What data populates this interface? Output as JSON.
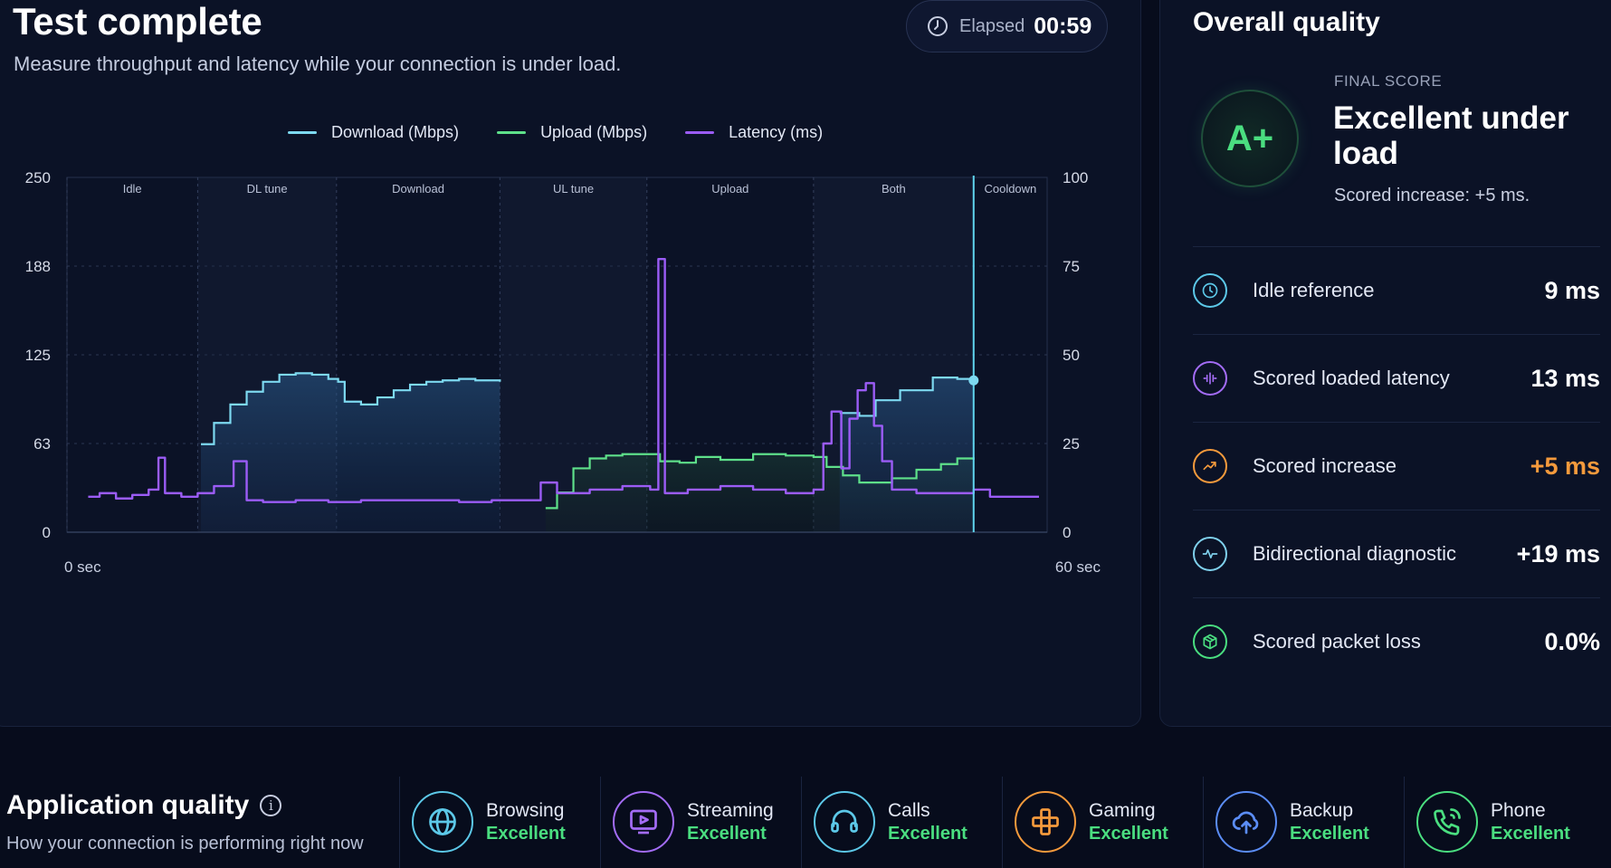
{
  "header": {
    "title": "Test complete",
    "subtitle": "Measure throughput and latency while your connection is under load.",
    "elapsed_label": "Elapsed",
    "elapsed_value": "00:59"
  },
  "legend": [
    {
      "label": "Download (Mbps)",
      "color": "#7dd9f0"
    },
    {
      "label": "Upload (Mbps)",
      "color": "#5ee08a"
    },
    {
      "label": "Latency (ms)",
      "color": "#9b5cf6"
    }
  ],
  "chart_data": {
    "type": "line",
    "x_range": [
      0,
      60
    ],
    "x_labels": [
      "0 sec",
      "60 sec"
    ],
    "y_left_ticks": [
      "250",
      "188",
      "125",
      "63",
      "0"
    ],
    "y_right_ticks": [
      "100",
      "75",
      "50",
      "25",
      "0"
    ],
    "y_left_range": [
      0,
      250
    ],
    "y_right_range": [
      0,
      100
    ],
    "phases": [
      {
        "name": "Idle",
        "start": 0,
        "end": 8
      },
      {
        "name": "DL tune",
        "start": 8,
        "end": 16.5
      },
      {
        "name": "Download",
        "start": 16.5,
        "end": 26.5
      },
      {
        "name": "UL tune",
        "start": 26.5,
        "end": 35.5
      },
      {
        "name": "Upload",
        "start": 35.5,
        "end": 45.7
      },
      {
        "name": "Both",
        "start": 45.7,
        "end": 55.5
      },
      {
        "name": "Cooldown",
        "start": 55.5,
        "end": 60
      }
    ],
    "marker_x": 55.5,
    "series": [
      {
        "name": "Download (Mbps)",
        "axis": "left",
        "points": [
          [
            8.2,
            62
          ],
          [
            9,
            77
          ],
          [
            10,
            90
          ],
          [
            11,
            99
          ],
          [
            12,
            106
          ],
          [
            13,
            111
          ],
          [
            14,
            112
          ],
          [
            15,
            111
          ],
          [
            16,
            108
          ],
          [
            16.6,
            106
          ],
          [
            17,
            92
          ],
          [
            18,
            90
          ],
          [
            19,
            95
          ],
          [
            20,
            100
          ],
          [
            21,
            104
          ],
          [
            22,
            106
          ],
          [
            23,
            107
          ],
          [
            24,
            108
          ],
          [
            25,
            107
          ],
          [
            26.5,
            106
          ],
          [
            47.3,
            84
          ],
          [
            48.5,
            82
          ],
          [
            49.5,
            93
          ],
          [
            51,
            100
          ],
          [
            53,
            109
          ],
          [
            54.5,
            108
          ],
          [
            55.5,
            107
          ]
        ]
      },
      {
        "name": "Upload (Mbps)",
        "axis": "left",
        "points": [
          [
            29.3,
            17
          ],
          [
            30,
            28
          ],
          [
            31,
            45
          ],
          [
            32,
            52
          ],
          [
            33,
            54
          ],
          [
            34,
            55
          ],
          [
            35,
            55
          ],
          [
            36,
            55
          ],
          [
            36.3,
            50
          ],
          [
            37.5,
            49
          ],
          [
            38.5,
            53
          ],
          [
            40,
            51
          ],
          [
            42,
            55
          ],
          [
            44,
            54
          ],
          [
            45.7,
            53
          ],
          [
            46.5,
            46
          ],
          [
            47.5,
            40
          ],
          [
            48.5,
            35
          ],
          [
            49.5,
            35
          ],
          [
            50.5,
            38
          ],
          [
            52,
            44
          ],
          [
            53.5,
            48
          ],
          [
            54.5,
            52
          ],
          [
            55.5,
            51
          ]
        ]
      },
      {
        "name": "Latency (ms)",
        "axis": "right",
        "points": [
          [
            1.3,
            10
          ],
          [
            2,
            11
          ],
          [
            3,
            9.5
          ],
          [
            4,
            10.5
          ],
          [
            5,
            12
          ],
          [
            5.6,
            21
          ],
          [
            6,
            11
          ],
          [
            7,
            10
          ],
          [
            8,
            11
          ],
          [
            9,
            13
          ],
          [
            10.2,
            20
          ],
          [
            11,
            9
          ],
          [
            12,
            8.5
          ],
          [
            14,
            9
          ],
          [
            16,
            8.5
          ],
          [
            18,
            9
          ],
          [
            20,
            9
          ],
          [
            22,
            9
          ],
          [
            24,
            8.5
          ],
          [
            26,
            9
          ],
          [
            28,
            9
          ],
          [
            29,
            14
          ],
          [
            30,
            11
          ],
          [
            32,
            12
          ],
          [
            34,
            13
          ],
          [
            35.7,
            12
          ],
          [
            36.2,
            77
          ],
          [
            36.6,
            11
          ],
          [
            38,
            12
          ],
          [
            40,
            13
          ],
          [
            42,
            12
          ],
          [
            44,
            11
          ],
          [
            45.7,
            12
          ],
          [
            46.3,
            25
          ],
          [
            46.8,
            34
          ],
          [
            47.4,
            18
          ],
          [
            47.9,
            32
          ],
          [
            48.4,
            40
          ],
          [
            48.9,
            42
          ],
          [
            49.4,
            30
          ],
          [
            49.9,
            20
          ],
          [
            50.5,
            12
          ],
          [
            52,
            11
          ],
          [
            54,
            11
          ],
          [
            55.5,
            12
          ],
          [
            56.5,
            10
          ],
          [
            58,
            10
          ],
          [
            59.5,
            10
          ]
        ]
      }
    ]
  },
  "quality": {
    "title": "Overall quality",
    "grade": "A+",
    "grade_color": "#4ade80",
    "final_label": "FINAL SCORE",
    "final_headline": "Excellent under load",
    "final_sub": "Scored increase: +5 ms.",
    "metrics": [
      {
        "label": "Idle reference",
        "value": "9 ms",
        "icon": "clock-icon",
        "color": "#5cc8e8"
      },
      {
        "label": "Scored loaded latency",
        "value": "13 ms",
        "icon": "waveform-icon",
        "color": "#a36cf6"
      },
      {
        "label": "Scored increase",
        "value": "+5 ms",
        "icon": "trending-up-icon",
        "color": "#f59a3c",
        "value_color": "#f59a3c"
      },
      {
        "label": "Bidirectional diagnostic",
        "value": "+19 ms",
        "icon": "pulse-icon",
        "color": "#7fd0ec"
      },
      {
        "label": "Scored packet loss",
        "value": "0.0%",
        "icon": "package-icon",
        "color": "#4ade80"
      }
    ]
  },
  "apps": {
    "title": "Application quality",
    "subtitle": "How your connection is performing right now",
    "items": [
      {
        "name": "Browsing",
        "status": "Excellent",
        "icon": "globe-icon",
        "color": "#5cc8e8"
      },
      {
        "name": "Streaming",
        "status": "Excellent",
        "icon": "play-screen-icon",
        "color": "#a36cf6"
      },
      {
        "name": "Calls",
        "status": "Excellent",
        "icon": "headset-icon",
        "color": "#5cc8e8"
      },
      {
        "name": "Gaming",
        "status": "Excellent",
        "icon": "gamepad-icon",
        "color": "#f59a3c"
      },
      {
        "name": "Backup",
        "status": "Excellent",
        "icon": "cloud-upload-icon",
        "color": "#5b8df6"
      },
      {
        "name": "Phone",
        "status": "Excellent",
        "icon": "phone-icon",
        "color": "#4ade80"
      }
    ]
  }
}
